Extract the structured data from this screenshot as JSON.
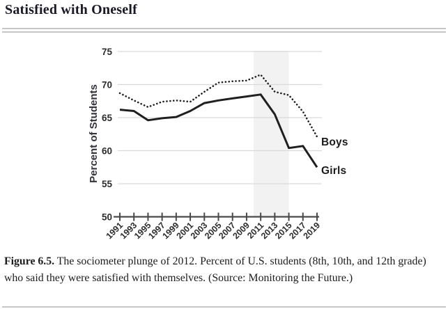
{
  "page": {
    "title": "Satisfied with Oneself",
    "caption_label": "Figure 6.5.",
    "caption_text": " The sociometer plunge of 2012. Percent of U.S. students (8th, 10th, and 12th grade) who said they were satisfied with themselves. (Source: Monitoring the Future.)"
  },
  "chart_data": {
    "type": "line",
    "title": "Satisfied with Oneself",
    "xlabel": "",
    "ylabel": "Percent of Students",
    "ylim": [
      50,
      75
    ],
    "yticks": [
      50,
      55,
      60,
      65,
      70,
      75
    ],
    "grid": true,
    "legend_position": "line-end-labels-right",
    "categories": [
      "1991",
      "1993",
      "1995",
      "1997",
      "1999",
      "2001",
      "2003",
      "2005",
      "2007",
      "2009",
      "2011",
      "2013",
      "2015",
      "2017",
      "2019"
    ],
    "series": [
      {
        "name": "Boys",
        "style": "dotted",
        "color": "#1f1f1f",
        "values": [
          68.7,
          67.6,
          66.6,
          67.4,
          67.6,
          67.4,
          68.9,
          70.3,
          70.5,
          70.6,
          71.5,
          68.9,
          68.4,
          65.9,
          62.1
        ]
      },
      {
        "name": "Girls",
        "style": "solid",
        "color": "#1f1f1f",
        "values": [
          66.2,
          66.0,
          64.6,
          64.9,
          65.1,
          66.0,
          67.2,
          67.6,
          67.9,
          68.2,
          68.5,
          65.5,
          60.4,
          60.7,
          57.5
        ]
      }
    ],
    "highlight_band": {
      "from_year": 2010,
      "to_year": 2015,
      "color": "#f2f2f2"
    },
    "colors": {
      "grid": "#d9d9d9",
      "axis": "#4a4a4a",
      "tick_text": "#2d2d2d"
    }
  }
}
